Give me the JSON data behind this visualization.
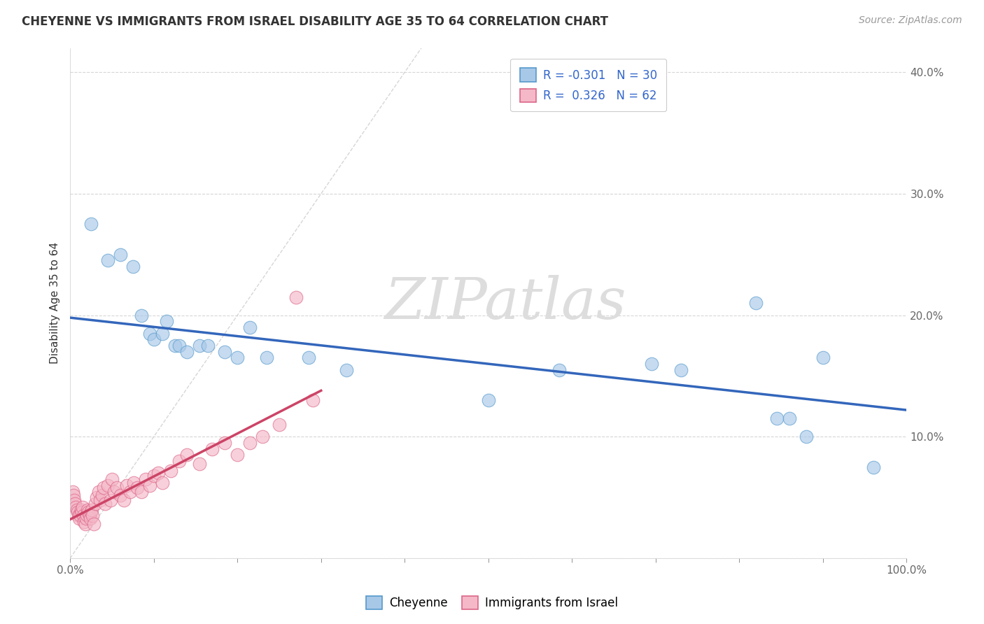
{
  "title": "CHEYENNE VS IMMIGRANTS FROM ISRAEL DISABILITY AGE 35 TO 64 CORRELATION CHART",
  "source": "Source: ZipAtlas.com",
  "ylabel": "Disability Age 35 to 64",
  "legend_labels": [
    "Cheyenne",
    "Immigrants from Israel"
  ],
  "cheyenne_color": "#a8c8e8",
  "israel_color": "#f4b8c8",
  "cheyenne_edge_color": "#5599cc",
  "israel_edge_color": "#dd6688",
  "cheyenne_line_color": "#3366bb",
  "israel_line_color": "#cc4466",
  "diag_color": "#cccccc",
  "watermark_color": "#e0e0e0",
  "grid_color": "#cccccc",
  "bg_color": "#ffffff",
  "title_color": "#333333",
  "source_color": "#999999",
  "tick_color": "#666666",
  "xlim": [
    0.0,
    1.0
  ],
  "ylim": [
    0.0,
    0.42
  ],
  "xtick_positions": [
    0.0,
    0.1,
    0.2,
    0.3,
    0.4,
    0.5,
    0.6,
    0.7,
    0.8,
    0.9,
    1.0
  ],
  "ytick_positions": [
    0.0,
    0.1,
    0.2,
    0.3,
    0.4
  ],
  "cheyenne_x": [
    0.025,
    0.045,
    0.06,
    0.075,
    0.085,
    0.095,
    0.1,
    0.11,
    0.115,
    0.125,
    0.13,
    0.14,
    0.155,
    0.165,
    0.185,
    0.2,
    0.215,
    0.235,
    0.285,
    0.33,
    0.5,
    0.585,
    0.695,
    0.73,
    0.82,
    0.845,
    0.86,
    0.88,
    0.9,
    0.96
  ],
  "cheyenne_y": [
    0.275,
    0.245,
    0.25,
    0.24,
    0.2,
    0.185,
    0.18,
    0.185,
    0.195,
    0.175,
    0.175,
    0.17,
    0.175,
    0.175,
    0.17,
    0.165,
    0.19,
    0.165,
    0.165,
    0.155,
    0.13,
    0.155,
    0.16,
    0.155,
    0.21,
    0.115,
    0.115,
    0.1,
    0.165,
    0.075
  ],
  "israel_x": [
    0.003,
    0.004,
    0.005,
    0.006,
    0.007,
    0.008,
    0.009,
    0.01,
    0.011,
    0.012,
    0.013,
    0.014,
    0.015,
    0.016,
    0.017,
    0.018,
    0.019,
    0.02,
    0.021,
    0.022,
    0.023,
    0.024,
    0.025,
    0.026,
    0.027,
    0.028,
    0.03,
    0.032,
    0.034,
    0.036,
    0.038,
    0.04,
    0.042,
    0.045,
    0.048,
    0.05,
    0.053,
    0.056,
    0.06,
    0.064,
    0.068,
    0.072,
    0.076,
    0.08,
    0.085,
    0.09,
    0.095,
    0.1,
    0.105,
    0.11,
    0.12,
    0.13,
    0.14,
    0.155,
    0.17,
    0.185,
    0.2,
    0.215,
    0.23,
    0.25,
    0.27,
    0.29
  ],
  "israel_y": [
    0.055,
    0.052,
    0.048,
    0.045,
    0.042,
    0.04,
    0.038,
    0.035,
    0.033,
    0.036,
    0.04,
    0.038,
    0.042,
    0.035,
    0.03,
    0.028,
    0.033,
    0.036,
    0.04,
    0.038,
    0.036,
    0.033,
    0.038,
    0.04,
    0.035,
    0.028,
    0.045,
    0.05,
    0.055,
    0.048,
    0.052,
    0.058,
    0.045,
    0.06,
    0.048,
    0.065,
    0.055,
    0.058,
    0.052,
    0.048,
    0.06,
    0.055,
    0.062,
    0.058,
    0.055,
    0.065,
    0.06,
    0.068,
    0.07,
    0.062,
    0.072,
    0.08,
    0.085,
    0.078,
    0.09,
    0.095,
    0.085,
    0.095,
    0.1,
    0.11,
    0.215,
    0.13
  ],
  "cheyenne_trend_x": [
    0.0,
    1.0
  ],
  "cheyenne_trend_y": [
    0.198,
    0.122
  ],
  "israel_trend_x": [
    0.0,
    0.3
  ],
  "israel_trend_y": [
    0.032,
    0.138
  ],
  "diag_line_x": [
    0.0,
    0.42
  ],
  "diag_line_y": [
    0.0,
    0.42
  ],
  "legend_r1": "R = -0.301",
  "legend_n1": "N = 30",
  "legend_r2": "R =  0.326",
  "legend_n2": "N = 62"
}
